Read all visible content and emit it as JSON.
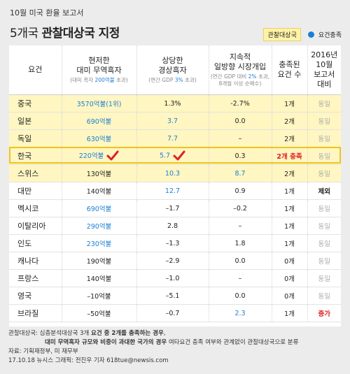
{
  "header": {
    "subtitle": "10월 미국 환율 보고서",
    "title_prefix": "5개국",
    "title_bold": "관찰대상국 지정",
    "legend_box": "관찰대상국",
    "legend_dot": "요건충족"
  },
  "columns": {
    "country": "요건",
    "trade_l1": "현저한",
    "trade_l2": "대미 무역흑자",
    "trade_note_pre": "(대미 흑자 ",
    "trade_note_blue": "200억불",
    "trade_note_post": " 초과)",
    "current_l1": "상당한",
    "current_l2": "경상흑자",
    "current_note_pre": "(연간 GDP ",
    "current_note_blue": "3%",
    "current_note_post": " 초과)",
    "interv_l1": "지속적",
    "interv_l2": "일방향 시장개입",
    "interv_note1_pre": "(연간 GDP 대비 ",
    "interv_note1_blue": "2%",
    "interv_note1_post": " 초과,",
    "interv_note2": "8개월 이상 순매수)",
    "count_l1": "충족된",
    "count_l2": "요건 수",
    "compare_l1": "2016년10월",
    "compare_l2": "보고서",
    "compare_l3": "대비"
  },
  "rows": [
    {
      "country": "중국",
      "trade": "3570억불(1위)",
      "current": "1.3%",
      "interv": "-2.7%",
      "count": "1개",
      "compare": "동일"
    },
    {
      "country": "일본",
      "trade": "690억불",
      "current": "3.7",
      "interv": "0.0",
      "count": "2개",
      "compare": "동일"
    },
    {
      "country": "독일",
      "trade": "630억불",
      "current": "7.7",
      "interv": "–",
      "count": "2개",
      "compare": "동일"
    },
    {
      "country": "한국",
      "trade": "220억불",
      "current": "5.7",
      "interv": "0.3",
      "count": "2개 충족",
      "compare": "동일"
    },
    {
      "country": "스위스",
      "trade": "130억불",
      "current": "10.3",
      "interv": "8.7",
      "count": "2개",
      "compare": "동일"
    },
    {
      "country": "대만",
      "trade": "140억불",
      "current": "12.7",
      "interv": "0.9",
      "count": "1개",
      "compare": "제외"
    },
    {
      "country": "멕시코",
      "trade": "690억불",
      "current": "–1.7",
      "interv": "–0.2",
      "count": "1개",
      "compare": "동일"
    },
    {
      "country": "이탈리아",
      "trade": "290억불",
      "current": "2.8",
      "interv": "–",
      "count": "1개",
      "compare": "동일"
    },
    {
      "country": "인도",
      "trade": "230억불",
      "current": "–1.3",
      "interv": "1.8",
      "count": "1개",
      "compare": "동일"
    },
    {
      "country": "캐나다",
      "trade": "190억불",
      "current": "–2.9",
      "interv": "0.0",
      "count": "0개",
      "compare": "동일"
    },
    {
      "country": "프랑스",
      "trade": "140억불",
      "current": "–1.0",
      "interv": "–",
      "count": "0개",
      "compare": "동일"
    },
    {
      "country": "영국",
      "trade": "–10억불",
      "current": "–5.1",
      "interv": "0.0",
      "count": "0개",
      "compare": "동일"
    },
    {
      "country": "브라질",
      "trade": "–50억불",
      "current": "–0.7",
      "interv": "2.3",
      "count": "1개",
      "compare": "증가"
    }
  ],
  "footer": {
    "line1_pre": "관찰대상국: 심층분석대상국 3개 ",
    "line1_bold": "요건 중 2개를 충족하는 경우",
    "line1_post": ",",
    "line2_bold": "대미 무역흑자 규모와 비중이 과대한 국가의 경우",
    "line2_post": " 여타요건 충족 여부와 관계없이 관찰대상국으로 분류",
    "source": "자료: 기획재정부, 미 재무부",
    "credit": "17.10.18  뉴시스 그래픽: 전진우 기자 618tue@newsis.com"
  },
  "colors": {
    "highlight": "#fff6c2",
    "accent_blue": "#1a7fd4",
    "accent_red": "#e02020",
    "korea_border": "#f0c419"
  },
  "icons": {
    "check": "red-check-icon"
  }
}
